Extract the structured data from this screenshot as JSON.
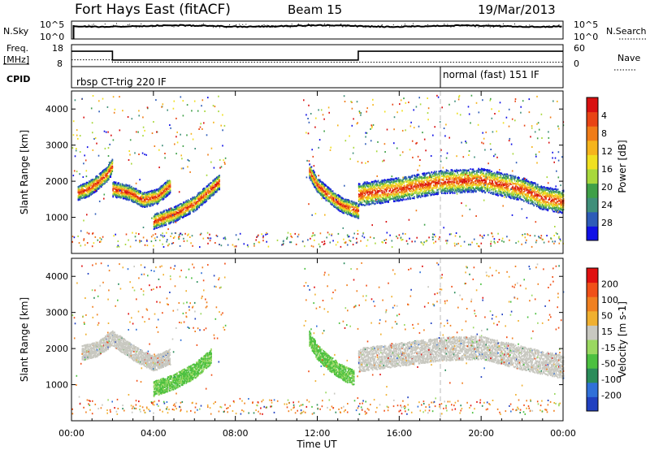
{
  "header": {
    "site": "Fort Hays East (fitACF)",
    "beam": "Beam 15",
    "date": "19/Mar/2013"
  },
  "top_panels": {
    "nsky_label": "N.Sky",
    "nsky_ticks": [
      "10^5",
      "10^0"
    ],
    "nsearch_label": "N.Search",
    "nsearch_ticks": [
      "10^5",
      "10^0"
    ],
    "freq_label_1": "Freq.",
    "freq_label_2": "[MHz]",
    "freq_ticks": [
      "18",
      "8"
    ],
    "nave_label": "Nave",
    "nave_ticks": [
      "60",
      "0"
    ],
    "cpid_label": "CPID",
    "modes": [
      {
        "label": "rbsp CT-trig 220 IF",
        "start_hour": 0
      },
      {
        "label": "normal (fast) 151 IF",
        "start_hour": 18
      }
    ]
  },
  "chart_data": [
    {
      "type": "heatmap",
      "name": "power-panel",
      "xlabel": "",
      "ylabel": "Slant Range [km]",
      "xlim": [
        0,
        24
      ],
      "ylim": [
        0,
        4500
      ],
      "y_ticks": [
        "1000",
        "2000",
        "3000",
        "4000"
      ],
      "colorbar": {
        "label": "Power [dB]",
        "ticks": [
          "4",
          "8",
          "12",
          "16",
          "20",
          "24",
          "28"
        ],
        "colors": [
          "#1010e6",
          "#2e5cb8",
          "#3f8f7a",
          "#3fa048",
          "#a8d83c",
          "#f0e020",
          "#f5b41c",
          "#f07c18",
          "#e84414",
          "#d81010"
        ]
      },
      "features": [
        {
          "desc": "band",
          "x": [
            0.3,
            0.8,
            1.3,
            1.7,
            2.0
          ],
          "y": [
            1700,
            1800,
            2000,
            2200,
            2450
          ]
        },
        {
          "desc": "band",
          "x": [
            2.0,
            2.8,
            3.5,
            4.2,
            4.8
          ],
          "y": [
            1800,
            1700,
            1500,
            1600,
            1900
          ]
        },
        {
          "desc": "band",
          "x": [
            4.0,
            5.0,
            6.0,
            6.8,
            7.2
          ],
          "y": [
            900,
            1100,
            1400,
            1800,
            2000
          ]
        },
        {
          "desc": "band",
          "x": [
            11.6,
            12.0,
            12.6,
            13.2,
            14.0
          ],
          "y": [
            2300,
            1900,
            1600,
            1350,
            1200
          ]
        },
        {
          "desc": "band",
          "x": [
            14.0,
            16.0,
            18.0,
            20.0,
            22.0,
            23.0,
            24.0
          ],
          "y": [
            1650,
            1800,
            2000,
            2050,
            1800,
            1550,
            1450
          ]
        }
      ]
    },
    {
      "type": "heatmap",
      "name": "velocity-panel",
      "xlabel": "Time UT",
      "ylabel": "Slant Range [km]",
      "xlim": [
        0,
        24
      ],
      "ylim": [
        0,
        4500
      ],
      "x_ticks": [
        "00:00",
        "04:00",
        "08:00",
        "12:00",
        "16:00",
        "20:00",
        "00:00"
      ],
      "y_ticks": [
        "1000",
        "2000",
        "3000",
        "4000"
      ],
      "colorbar": {
        "label": "Velocity [m s-1]",
        "ticks": [
          "200",
          "100",
          "50",
          "15",
          "-15",
          "-50",
          "-100",
          "-200"
        ],
        "colors": [
          "#2040c0",
          "#3070d8",
          "#2a8c5a",
          "#4cc040",
          "#9ad860",
          "#c8c8c0",
          "#f0b030",
          "#f08020",
          "#f05018",
          "#e01010"
        ]
      },
      "features": [
        {
          "desc": "ground scatter",
          "x": [
            0.5,
            1.2,
            2.0,
            3.0,
            4.0,
            4.8
          ],
          "y": [
            1900,
            2000,
            2300,
            1900,
            1600,
            1800
          ]
        },
        {
          "desc": "positive velocity band",
          "x": [
            4.0,
            5.0,
            6.0,
            6.8
          ],
          "y": [
            900,
            1100,
            1400,
            1800
          ]
        },
        {
          "desc": "positive velocity band",
          "x": [
            11.6,
            12.0,
            12.6,
            13.2,
            13.8
          ],
          "y": [
            2300,
            1900,
            1600,
            1350,
            1200
          ]
        },
        {
          "desc": "ground scatter",
          "x": [
            14.0,
            16.0,
            18.0,
            20.0,
            22.0,
            24.0
          ],
          "y": [
            1700,
            1850,
            2000,
            2050,
            1750,
            1500
          ]
        }
      ]
    }
  ]
}
